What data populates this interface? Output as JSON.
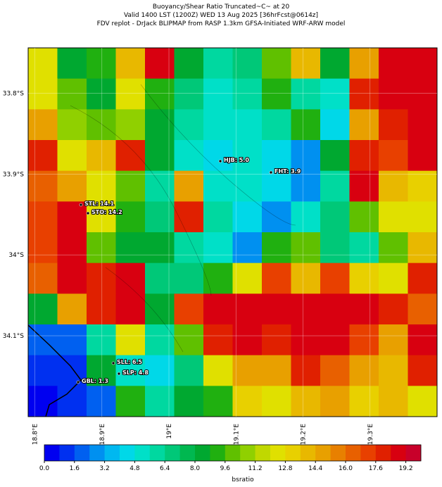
{
  "chart_data": {
    "type": "map",
    "title": [
      "Buoyancy/Shear Ratio Truncated~C~    at 20",
      "Valid 1400 LST (1200Z) WED 13 Aug 2025 [36hrFcst@0614z]",
      "FDV replot - DrJack BLIPMAP from RASP 1.3km GFSA-Initiated WRF-ARW model"
    ],
    "xlim": [
      18.79,
      19.4
    ],
    "ylim": [
      -34.2,
      -33.744
    ],
    "xticks": [
      {
        "value": 18.8,
        "label": "18.8°E"
      },
      {
        "value": 18.9,
        "label": "18.9°E"
      },
      {
        "value": 19.0,
        "label": "19°E"
      },
      {
        "value": 19.1,
        "label": "19.1°E"
      },
      {
        "value": 19.2,
        "label": "19.2°E"
      },
      {
        "value": 19.3,
        "label": "19.3°E"
      }
    ],
    "yticks": [
      {
        "value": -33.8,
        "label": "33.8°S"
      },
      {
        "value": -33.9,
        "label": "33.9°S"
      },
      {
        "value": -34.0,
        "label": "34°S"
      },
      {
        "value": -34.1,
        "label": "34.1°S"
      }
    ],
    "grid_values": [
      [
        12,
        8,
        9,
        14,
        19,
        8,
        6,
        7,
        10,
        14,
        8,
        15,
        19,
        19
      ],
      [
        12,
        10,
        8,
        12,
        9,
        7,
        5,
        6,
        9,
        6,
        5,
        18,
        19,
        19
      ],
      [
        15,
        11,
        10,
        11,
        8,
        6,
        5,
        5,
        6,
        9,
        4,
        15,
        18,
        19
      ],
      [
        18,
        12,
        14,
        18,
        8,
        5,
        4,
        5,
        4,
        3,
        8,
        18,
        17,
        19
      ],
      [
        16,
        15,
        12,
        10,
        6,
        15,
        5,
        5,
        4,
        3,
        6,
        19,
        14,
        13
      ],
      [
        17,
        19,
        12,
        9,
        7,
        18,
        6,
        4,
        3,
        5,
        7,
        10,
        12,
        12
      ],
      [
        17,
        19,
        10,
        8,
        8,
        6,
        5,
        3,
        9,
        10,
        7,
        6,
        10,
        14
      ],
      [
        16,
        19,
        18,
        19,
        7,
        7,
        9,
        12,
        17,
        14,
        17,
        13,
        12,
        18
      ],
      [
        8,
        15,
        18,
        19,
        8,
        17,
        19,
        19,
        19,
        19,
        19,
        19,
        18,
        16
      ],
      [
        2,
        2,
        6,
        12,
        6,
        10,
        18,
        19,
        18,
        19,
        19,
        17,
        15,
        19
      ],
      [
        1,
        1,
        8,
        5,
        4,
        7,
        12,
        15,
        15,
        18,
        16,
        15,
        14,
        18
      ],
      [
        0,
        1,
        2,
        9,
        6,
        8,
        9,
        13,
        12,
        14,
        15,
        13,
        14,
        12
      ]
    ],
    "sites": [
      "HJB: 5.0",
      "FHT: 3.9",
      "STL: 14.1",
      "STO: 14.2",
      "SLL: 6.5",
      "SLP: 4.8",
      "GBL: 1.3"
    ],
    "colorbar": {
      "label": "bsratio",
      "lim": [
        0,
        20
      ],
      "ticks": [
        {
          "value": 0,
          "label": "0.0"
        },
        1.6,
        3.2,
        4.8,
        6.4,
        {
          "value": 8,
          "label": "8.0"
        },
        9.6,
        11.2,
        12.8,
        14.4,
        {
          "value": 16,
          "label": "16.0"
        },
        17.6,
        19.2
      ],
      "colors": [
        "#0000f0",
        "#0030f0",
        "#0060f0",
        "#0090f0",
        "#00b8f0",
        "#00d8e8",
        "#00e0c8",
        "#00d8a0",
        "#00c878",
        "#00b850",
        "#00a830",
        "#20b010",
        "#60c000",
        "#90d000",
        "#c0d800",
        "#e0e000",
        "#e8d000",
        "#e8b800",
        "#e8a000",
        "#e88000",
        "#e86000",
        "#e84000",
        "#e02000",
        "#d80010",
        "#c8002a"
      ]
    }
  }
}
